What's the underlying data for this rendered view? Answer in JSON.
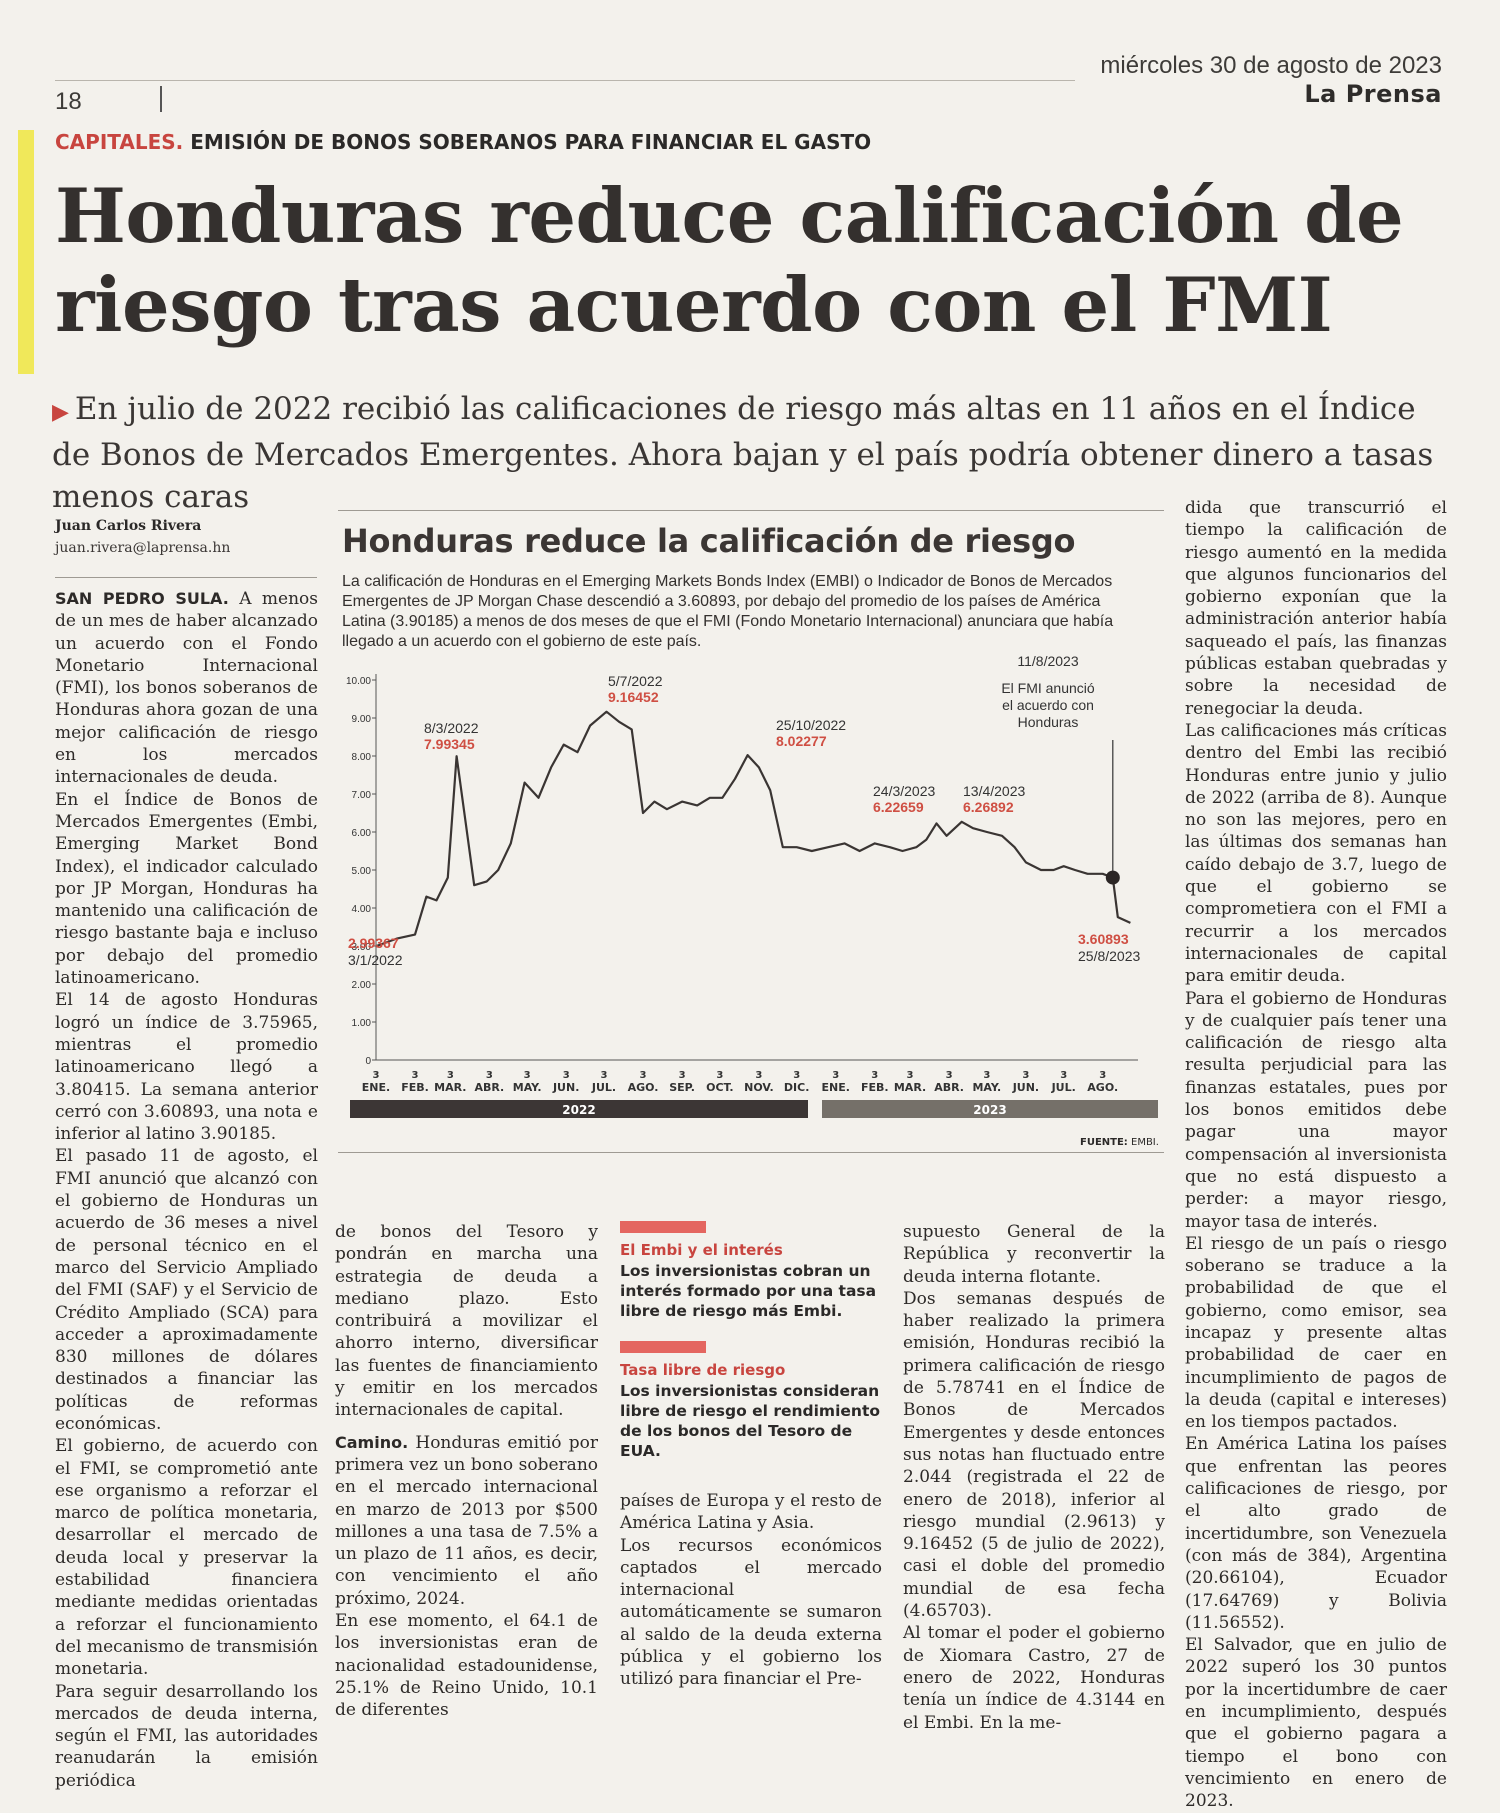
{
  "header": {
    "date": "miércoles 30 de agosto de 2023",
    "paper": "La Prensa",
    "page": "18"
  },
  "kicker": {
    "section": "CAPITALES.",
    "topic": "EMISIÓN DE BONOS SOBERANOS PARA FINANCIAR EL GASTO"
  },
  "headline": "Honduras reduce calificación de riesgo tras acuerdo con el FMI",
  "deck": "En julio de 2022 recibió las calificaciones de riesgo más altas en 11 años en el Índice de Bonos de Mercados Emergentes. Ahora bajan y el país podría obtener dinero a tasas menos caras",
  "byline": {
    "author": "Juan Carlos Rivera",
    "email": "juan.rivera@laprensa.hn"
  },
  "col1": {
    "dateline": "SAN PEDRO SULA.",
    "paragraphs": [
      "A menos de un mes de haber alcanzado un acuerdo con el Fondo Monetario Internacional (FMI), los bonos soberanos de Honduras ahora gozan de una mejor calificación de riesgo en los mercados internacionales de deuda.",
      "En el Índice de Bonos de Mercados Emergentes (Embi, Emerging Market Bond Index), el indicador calculado por JP Morgan, Honduras ha mantenido una calificación de riesgo bastante baja e incluso por debajo del promedio latinoamericano.",
      "El 14 de agosto Honduras logró un índice de 3.75965, mientras el promedio latinoamericano llegó a 3.80415. La semana anterior cerró con 3.60893, una nota e inferior al latino 3.90185.",
      "El pasado 11 de agosto, el FMI anunció que alcanzó con el gobierno de Honduras un acuerdo de 36 meses a nivel de personal técnico en el marco del Servicio Ampliado del FMI (SAF) y el Servicio de Crédito Ampliado (SCA) para acceder a aproximadamente 830 millones de dólares destinados a financiar las políticas de reformas económicas.",
      "El gobierno, de acuerdo con el FMI, se comprometió ante ese organismo a reforzar el marco de política monetaria, desarrollar el mercado de deuda local y preservar la estabilidad financiera mediante medidas orientadas a reforzar el funcionamiento del mecanismo de transmisión monetaria.",
      "Para seguir desarrollando los mercados de deuda interna, según el FMI, las autoridades reanudarán la emisión periódica"
    ]
  },
  "col2": {
    "paragraphs": [
      "de bonos del Tesoro y pondrán en marcha una estrategia de deuda a mediano plazo. Esto contribuirá a movilizar el ahorro interno, diversificar las fuentes de financiamiento y emitir en los mercados internacionales de capital."
    ],
    "subhead": "Camino.",
    "paragraphs2": [
      "Honduras emitió por primera vez un bono soberano en el mercado internacional en marzo de 2013 por $500 millones a una tasa de 7.5% a un plazo de 11 años, es decir, con vencimiento el año próximo, 2024.",
      "En ese momento, el 64.1 de los inversionistas eran de nacionalidad estadounidense, 25.1% de Reino Unido, 10.1 de diferentes"
    ]
  },
  "sidebar": [
    {
      "title": "El Embi y el interés",
      "text": "Los inversionistas cobran un interés formado por una tasa libre de riesgo más Embi."
    },
    {
      "title": "Tasa libre de riesgo",
      "text": "Los inversionistas consideran libre de riesgo el rendimiento de los bonos del Tesoro de EUA."
    }
  ],
  "col3a": {
    "paragraphs": [
      "países de Europa y el resto de América Latina y Asia.",
      "Los recursos económicos captados el mercado internacional automáticamente se sumaron al saldo de la deuda externa pública y el gobierno los utilizó para financiar el Pre-"
    ]
  },
  "col3b": {
    "paragraphs": [
      "supuesto General de la República y reconvertir la deuda interna flotante.",
      "Dos semanas después de haber realizado la primera emisión, Honduras recibió la primera calificación de riesgo de 5.78741 en el Índice de Bonos de Mercados Emergentes y desde entonces sus notas han fluctuado entre 2.044 (registrada el 22 de enero de 2018), inferior al riesgo mundial (2.9613) y 9.16452 (5 de julio de 2022), casi el doble del promedio mundial de esa fecha (4.65703).",
      "Al tomar el poder el gobierno de Xiomara Castro, 27 de enero de 2022, Honduras tenía un índice de 4.3144 en el Embi. En la me-"
    ]
  },
  "col4": {
    "paragraphs": [
      "dida que transcurrió el tiempo la calificación de riesgo aumentó en la medida que algunos funcionarios del gobierno exponían que la administración anterior había saqueado el país, las finanzas públicas estaban quebradas y sobre la necesidad de renegociar la deuda.",
      "Las calificaciones más críticas dentro del Embi las recibió Honduras entre junio y julio de 2022 (arriba de 8). Aunque no son las mejores, pero en las últimas dos semanas han caído debajo de 3.7, luego de que el gobierno se comprometiera con el FMI a recurrir a los mercados internacionales de capital para emitir deuda.",
      "Para el gobierno de Honduras y de cualquier país tener una calificación de riesgo alta resulta perjudicial para las finanzas estatales, pues por los bonos emitidos debe pagar una mayor compensación al inversionista que no está dispuesto a perder: a mayor riesgo, mayor tasa de interés.",
      "El riesgo de un país o riesgo soberano se traduce a la probabilidad de que el gobierno, como emisor, sea incapaz y presente altas probabilidad de caer en incumplimiento de pagos de la deuda (capital e intereses) en los tiempos pactados.",
      "En América Latina los países que enfrentan las peores calificaciones de riesgo, por el alto grado de incertidumbre, son Venezuela (con más de 384), Argentina (20.66104), Ecuador (17.64769) y Bolivia (11.56552).",
      "El Salvador, que en julio de 2022 superó los 30 puntos por la incertidumbre de caer en incumplimiento, después que el gobierno pagara a tiempo el bono con vencimiento en enero de 2023."
    ]
  },
  "chart_text": {
    "title": "Honduras reduce la calificación de riesgo",
    "description": "La calificación de Honduras en el Emerging Markets Bonds Index (EMBI) o Indicador de Bonos de Mercados Emergentes de JP Morgan Chase descendió a 3.60893, por debajo del promedio de los países de América Latina (3.90185) a menos de dos meses de que el FMI (Fondo Monetario Internacional) anunciara que había llegado a un acuerdo con el gobierno de este país.",
    "source_label": "FUENTE:",
    "source_value": "EMBI."
  },
  "chart_data": {
    "type": "line",
    "title": "Honduras reduce la calificación de riesgo",
    "ylim": [
      0,
      10
    ],
    "yticks": [
      "0",
      "1.00",
      "2.00",
      "3.00",
      "4.00",
      "5.00",
      "6.00",
      "7.00",
      "8.00",
      "9.00",
      "10.00"
    ],
    "xticks": [
      {
        "day": "3",
        "month": "ENE."
      },
      {
        "day": "3",
        "month": "FEB."
      },
      {
        "day": "3",
        "month": "MAR."
      },
      {
        "day": "3",
        "month": "ABR."
      },
      {
        "day": "3",
        "month": "MAY."
      },
      {
        "day": "3",
        "month": "JUN."
      },
      {
        "day": "3",
        "month": "JUL."
      },
      {
        "day": "3",
        "month": "AGO."
      },
      {
        "day": "3",
        "month": "SEP."
      },
      {
        "day": "3",
        "month": "OCT."
      },
      {
        "day": "3",
        "month": "NOV."
      },
      {
        "day": "3",
        "month": "DIC."
      },
      {
        "day": "3",
        "month": "ENE."
      },
      {
        "day": "3",
        "month": "FEB."
      },
      {
        "day": "3",
        "month": "MAR."
      },
      {
        "day": "3",
        "month": "ABR."
      },
      {
        "day": "3",
        "month": "MAY."
      },
      {
        "day": "3",
        "month": "JUN."
      },
      {
        "day": "3",
        "month": "JUL."
      },
      {
        "day": "3",
        "month": "AGO."
      }
    ],
    "years": [
      "2022",
      "2023"
    ],
    "series": [
      {
        "x": [
          "2022-01-03",
          "2022-01-20",
          "2022-02-03",
          "2022-02-12",
          "2022-02-20",
          "2022-03-01",
          "2022-03-08",
          "2022-03-15",
          "2022-03-22",
          "2022-04-01",
          "2022-04-10",
          "2022-04-20",
          "2022-05-01",
          "2022-05-12",
          "2022-05-22",
          "2022-06-01",
          "2022-06-12",
          "2022-06-22",
          "2022-07-05",
          "2022-07-15",
          "2022-07-25",
          "2022-08-03",
          "2022-08-12",
          "2022-08-22",
          "2022-09-03",
          "2022-09-15",
          "2022-09-25",
          "2022-10-05",
          "2022-10-15",
          "2022-10-25",
          "2022-11-03",
          "2022-11-12",
          "2022-11-22",
          "2022-12-03",
          "2022-12-15",
          "2022-12-28",
          "2023-01-10",
          "2023-01-22",
          "2023-02-03",
          "2023-02-15",
          "2023-02-25",
          "2023-03-08",
          "2023-03-16",
          "2023-03-24",
          "2023-04-01",
          "2023-04-13",
          "2023-04-22",
          "2023-05-03",
          "2023-05-15",
          "2023-05-25",
          "2023-06-03",
          "2023-06-15",
          "2023-06-25",
          "2023-07-03",
          "2023-07-12",
          "2023-07-22",
          "2023-08-03",
          "2023-08-11",
          "2023-08-15",
          "2023-08-25"
        ],
        "values": [
          2.99367,
          3.2,
          3.3,
          4.3,
          4.2,
          4.8,
          7.99345,
          6.3,
          4.6,
          4.7,
          5.0,
          5.7,
          7.3,
          6.9,
          7.7,
          8.3,
          8.1,
          8.8,
          9.16452,
          8.9,
          8.7,
          6.5,
          6.8,
          6.6,
          6.8,
          6.7,
          6.9,
          6.9,
          7.4,
          8.02277,
          7.7,
          7.1,
          5.6,
          5.6,
          5.5,
          5.6,
          5.7,
          5.5,
          5.7,
          5.6,
          5.5,
          5.6,
          5.8,
          6.22659,
          5.9,
          6.26892,
          6.1,
          6.0,
          5.9,
          5.6,
          5.2,
          5.0,
          5.0,
          5.1,
          5.0,
          4.9,
          4.9,
          4.8,
          3.75965,
          3.60893
        ]
      }
    ],
    "annotations": [
      {
        "date": "3/1/2022",
        "value": "2.99367"
      },
      {
        "date": "8/3/2022",
        "value": "7.99345"
      },
      {
        "date": "5/7/2022",
        "value": "9.16452"
      },
      {
        "date": "25/10/2022",
        "value": "8.02277"
      },
      {
        "date": "24/3/2023",
        "value": "6.22659"
      },
      {
        "date": "13/4/2023",
        "value": "6.26892"
      },
      {
        "date": "25/8/2023",
        "value": "3.60893"
      }
    ],
    "event": {
      "date": "11/8/2023",
      "text": [
        "El FMI anunció",
        "el acuerdo con",
        "Honduras"
      ]
    },
    "colors": {
      "line": "#3a3533",
      "accent": "#cf4f43",
      "year2022": "#3c3635",
      "year2023": "#757069"
    }
  }
}
